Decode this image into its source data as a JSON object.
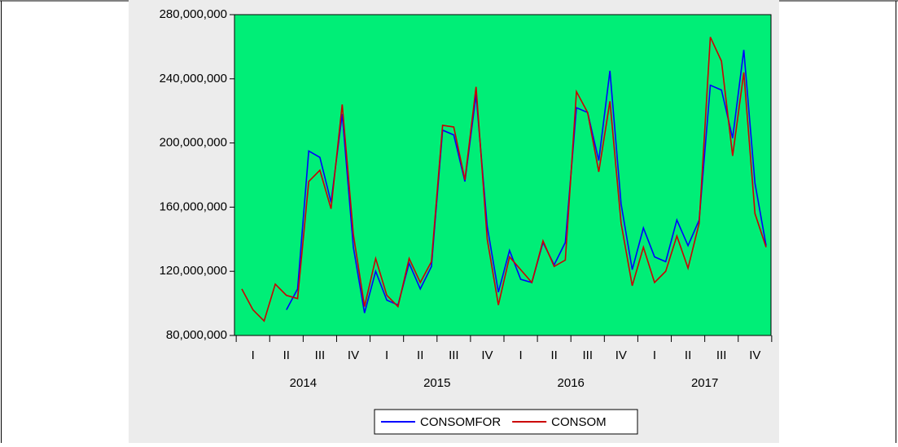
{
  "chart_data": {
    "type": "line",
    "categories": [
      null,
      "I",
      null,
      null,
      "II",
      null,
      null,
      "III",
      null,
      null,
      "IV",
      null,
      null,
      "I",
      null,
      null,
      "II",
      null,
      null,
      "III",
      null,
      null,
      "IV",
      null,
      null,
      "I",
      null,
      null,
      "II",
      null,
      null,
      "III",
      null,
      null,
      "IV",
      null,
      null,
      "I",
      null,
      null,
      "II",
      null,
      null,
      "III",
      null,
      null,
      "IV",
      null
    ],
    "year_labels": [
      "2014",
      "2015",
      "2016",
      "2017"
    ],
    "series": [
      {
        "name": "CONSOMFOR",
        "color": "#0000ff",
        "values": [
          null,
          null,
          null,
          null,
          96000000,
          109000000,
          195000000,
          191000000,
          163000000,
          218000000,
          135000000,
          94000000,
          120000000,
          102000000,
          99000000,
          125000000,
          109000000,
          123000000,
          208000000,
          205000000,
          176000000,
          230000000,
          148000000,
          107000000,
          133000000,
          115000000,
          113000000,
          138000000,
          124000000,
          138000000,
          222000000,
          219000000,
          189000000,
          245000000,
          162000000,
          121000000,
          147000000,
          129000000,
          126000000,
          152000000,
          136000000,
          152000000,
          236000000,
          233000000,
          203000000,
          258000000,
          175000000,
          136000000
        ]
      },
      {
        "name": "CONSOM",
        "color": "#cc0000",
        "values": [
          109000000,
          96000000,
          89000000,
          112000000,
          105000000,
          103000000,
          176000000,
          183000000,
          159000000,
          224000000,
          143000000,
          98000000,
          128000000,
          105000000,
          98000000,
          128000000,
          113000000,
          126000000,
          211000000,
          210000000,
          177000000,
          235000000,
          140000000,
          99000000,
          129000000,
          121000000,
          113000000,
          139000000,
          123000000,
          127000000,
          232000000,
          219000000,
          182000000,
          226000000,
          150000000,
          111000000,
          135000000,
          113000000,
          120000000,
          142000000,
          122000000,
          150000000,
          266000000,
          251000000,
          192000000,
          244000000,
          156000000,
          135000000
        ]
      }
    ],
    "ylim": [
      80000000,
      280000000
    ],
    "yticks": [
      {
        "value": 80000000,
        "label": "80,000,000"
      },
      {
        "value": 120000000,
        "label": "120,000,000"
      },
      {
        "value": 160000000,
        "label": "160,000,000"
      },
      {
        "value": 200000000,
        "label": "200,000,000"
      },
      {
        "value": 240000000,
        "label": "240,000,000"
      },
      {
        "value": 280000000,
        "label": "280,000,000"
      }
    ],
    "plot_color": "#00ee77"
  }
}
